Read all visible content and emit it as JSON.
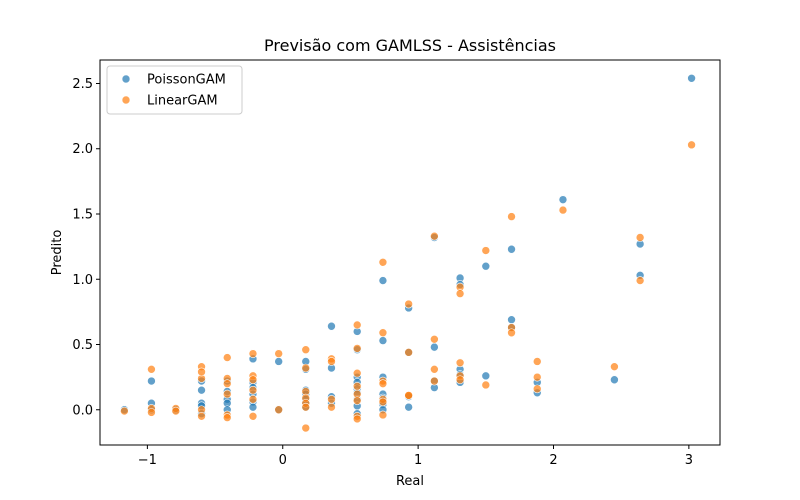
{
  "chart_data": {
    "type": "scatter",
    "title": "Previsão com GAMLSS - Assistências",
    "xlabel": "Real",
    "ylabel": "Predito",
    "xlim": [
      -1.35,
      3.23
    ],
    "ylim": [
      -0.27,
      2.68
    ],
    "xticks": [
      -1,
      0,
      1,
      2,
      3
    ],
    "xtick_labels": [
      "−1",
      "0",
      "1",
      "2",
      "3"
    ],
    "yticks": [
      0.0,
      0.5,
      1.0,
      1.5,
      2.0,
      2.5
    ],
    "ytick_labels": [
      "0.0",
      "0.5",
      "1.0",
      "1.5",
      "2.0",
      "2.5"
    ],
    "grid": false,
    "legend": "upper-left",
    "series": [
      {
        "name": "PoissonGAM",
        "color": "#1f77b4",
        "points": [
          [
            -1.17,
            0.0
          ],
          [
            -0.97,
            0.22
          ],
          [
            -0.97,
            0.05
          ],
          [
            -0.97,
            0.0
          ],
          [
            -0.79,
            0.0
          ],
          [
            -0.6,
            0.22
          ],
          [
            -0.6,
            0.15
          ],
          [
            -0.6,
            0.05
          ],
          [
            -0.6,
            0.03
          ],
          [
            -0.6,
            -0.03
          ],
          [
            -0.41,
            0.22
          ],
          [
            -0.41,
            0.14
          ],
          [
            -0.41,
            0.08
          ],
          [
            -0.41,
            0.05
          ],
          [
            -0.41,
            0.0
          ],
          [
            -0.22,
            0.39
          ],
          [
            -0.22,
            0.21
          ],
          [
            -0.22,
            0.17
          ],
          [
            -0.22,
            0.12
          ],
          [
            -0.22,
            0.06
          ],
          [
            -0.22,
            0.02
          ],
          [
            -0.03,
            0.37
          ],
          [
            -0.03,
            0.0
          ],
          [
            0.17,
            0.37
          ],
          [
            0.17,
            0.31
          ],
          [
            0.17,
            0.15
          ],
          [
            0.17,
            0.12
          ],
          [
            0.17,
            0.08
          ],
          [
            0.17,
            0.05
          ],
          [
            0.17,
            0.02
          ],
          [
            0.36,
            0.64
          ],
          [
            0.36,
            0.32
          ],
          [
            0.36,
            0.1
          ],
          [
            0.36,
            0.05
          ],
          [
            0.55,
            0.6
          ],
          [
            0.55,
            0.46
          ],
          [
            0.55,
            0.25
          ],
          [
            0.55,
            0.21
          ],
          [
            0.55,
            0.16
          ],
          [
            0.55,
            0.13
          ],
          [
            0.55,
            0.08
          ],
          [
            0.55,
            0.03
          ],
          [
            0.55,
            -0.03
          ],
          [
            0.74,
            0.99
          ],
          [
            0.74,
            0.53
          ],
          [
            0.74,
            0.25
          ],
          [
            0.74,
            0.12
          ],
          [
            0.74,
            0.09
          ],
          [
            0.74,
            0.07
          ],
          [
            0.74,
            0.04
          ],
          [
            0.74,
            0.0
          ],
          [
            0.93,
            0.78
          ],
          [
            0.93,
            0.44
          ],
          [
            0.93,
            0.1
          ],
          [
            0.93,
            0.02
          ],
          [
            1.12,
            1.32
          ],
          [
            1.12,
            0.48
          ],
          [
            1.12,
            0.22
          ],
          [
            1.12,
            0.17
          ],
          [
            1.31,
            1.01
          ],
          [
            1.31,
            0.96
          ],
          [
            1.31,
            0.31
          ],
          [
            1.31,
            0.27
          ],
          [
            1.31,
            0.21
          ],
          [
            1.5,
            1.1
          ],
          [
            1.5,
            0.26
          ],
          [
            1.69,
            1.23
          ],
          [
            1.69,
            0.69
          ],
          [
            1.69,
            0.63
          ],
          [
            1.88,
            0.21
          ],
          [
            1.88,
            0.13
          ],
          [
            2.07,
            1.61
          ],
          [
            2.45,
            0.23
          ],
          [
            2.64,
            1.27
          ],
          [
            2.64,
            1.03
          ],
          [
            3.02,
            2.54
          ]
        ]
      },
      {
        "name": "LinearGAM",
        "color": "#ff7f0e",
        "points": [
          [
            -1.17,
            -0.01
          ],
          [
            -0.97,
            0.31
          ],
          [
            -0.97,
            0.01
          ],
          [
            -0.97,
            -0.02
          ],
          [
            -0.79,
            0.01
          ],
          [
            -0.79,
            -0.01
          ],
          [
            -0.6,
            0.33
          ],
          [
            -0.6,
            0.24
          ],
          [
            -0.6,
            0.29
          ],
          [
            -0.6,
            0.0
          ],
          [
            -0.6,
            -0.05
          ],
          [
            -0.41,
            0.4
          ],
          [
            -0.41,
            0.24
          ],
          [
            -0.41,
            0.2
          ],
          [
            -0.41,
            0.12
          ],
          [
            -0.41,
            -0.04
          ],
          [
            -0.41,
            -0.06
          ],
          [
            -0.22,
            0.43
          ],
          [
            -0.22,
            0.26
          ],
          [
            -0.22,
            0.23
          ],
          [
            -0.22,
            0.15
          ],
          [
            -0.22,
            0.08
          ],
          [
            -0.22,
            -0.05
          ],
          [
            -0.03,
            0.43
          ],
          [
            -0.03,
            0.0
          ],
          [
            0.17,
            0.46
          ],
          [
            0.17,
            0.32
          ],
          [
            0.17,
            0.14
          ],
          [
            0.17,
            0.09
          ],
          [
            0.17,
            0.05
          ],
          [
            0.17,
            0.02
          ],
          [
            0.17,
            -0.14
          ],
          [
            0.36,
            0.39
          ],
          [
            0.36,
            0.37
          ],
          [
            0.36,
            0.08
          ],
          [
            0.36,
            0.02
          ],
          [
            0.55,
            0.65
          ],
          [
            0.55,
            0.47
          ],
          [
            0.55,
            0.28
          ],
          [
            0.55,
            0.18
          ],
          [
            0.55,
            0.12
          ],
          [
            0.55,
            0.07
          ],
          [
            0.55,
            -0.05
          ],
          [
            0.55,
            -0.07
          ],
          [
            0.74,
            1.13
          ],
          [
            0.74,
            0.59
          ],
          [
            0.74,
            0.22
          ],
          [
            0.74,
            0.2
          ],
          [
            0.74,
            0.08
          ],
          [
            0.74,
            0.06
          ],
          [
            0.74,
            -0.04
          ],
          [
            0.93,
            0.81
          ],
          [
            0.93,
            0.44
          ],
          [
            0.93,
            0.11
          ],
          [
            0.93,
            0.11
          ],
          [
            1.12,
            1.33
          ],
          [
            1.12,
            0.54
          ],
          [
            1.12,
            0.31
          ],
          [
            1.12,
            0.22
          ],
          [
            1.31,
            0.94
          ],
          [
            1.31,
            0.89
          ],
          [
            1.31,
            0.36
          ],
          [
            1.31,
            0.26
          ],
          [
            1.31,
            0.23
          ],
          [
            1.5,
            1.22
          ],
          [
            1.5,
            0.19
          ],
          [
            1.69,
            1.48
          ],
          [
            1.69,
            0.63
          ],
          [
            1.69,
            0.59
          ],
          [
            1.88,
            0.37
          ],
          [
            1.88,
            0.25
          ],
          [
            1.88,
            0.16
          ],
          [
            2.07,
            1.53
          ],
          [
            2.45,
            0.33
          ],
          [
            2.64,
            1.32
          ],
          [
            2.64,
            0.99
          ],
          [
            3.02,
            2.03
          ]
        ]
      }
    ]
  }
}
